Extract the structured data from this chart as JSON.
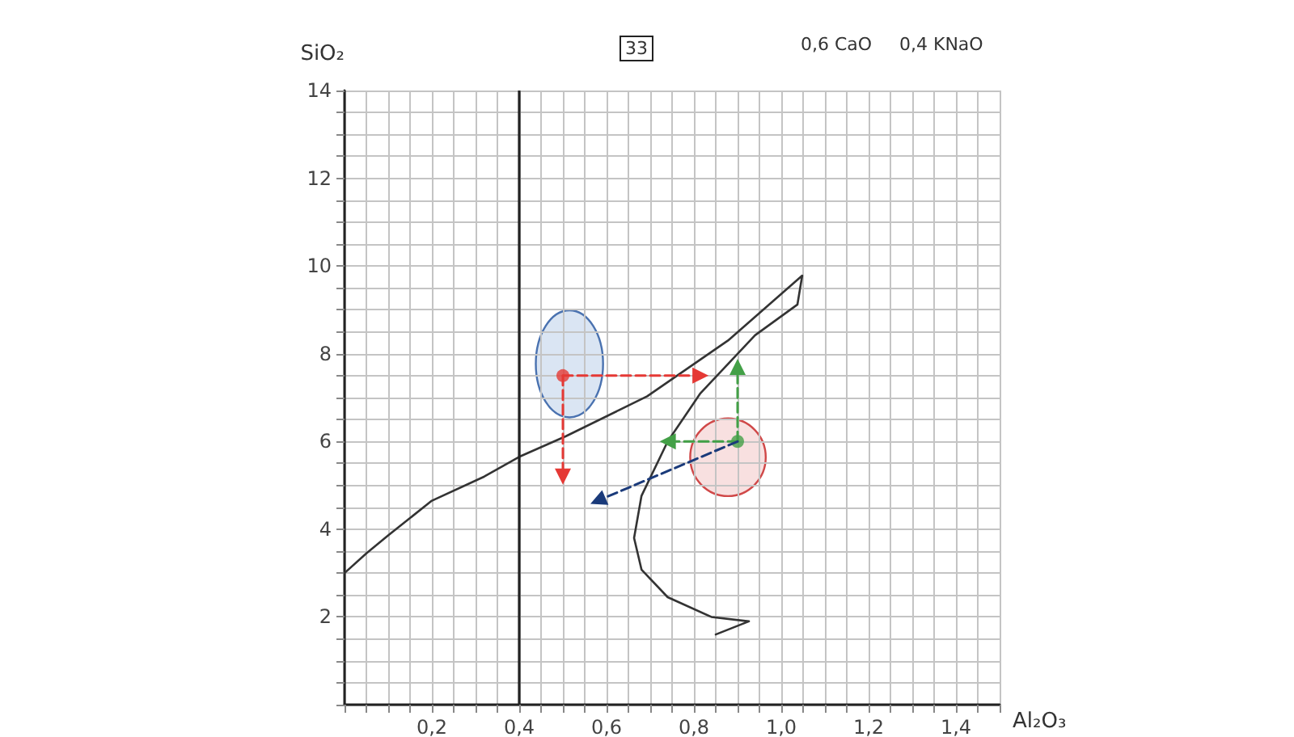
{
  "chart_data": {
    "type": "line",
    "xlabel": "Al₂O₃",
    "ylabel": "SiO₂",
    "annotations": [
      "33",
      "0,6 CaO",
      "0,4 KNaO"
    ],
    "xlim": [
      0,
      1.5
    ],
    "ylim": [
      0,
      14
    ],
    "xticks": [
      {
        "value": 0,
        "label": null
      },
      {
        "value": 0.05,
        "label": null
      },
      {
        "value": 0.1,
        "label": null
      },
      {
        "value": 0.15,
        "label": null
      },
      {
        "value": 0.2,
        "label": "0,2"
      },
      {
        "value": 0.25,
        "label": null
      },
      {
        "value": 0.3,
        "label": null
      },
      {
        "value": 0.35,
        "label": null
      },
      {
        "value": 0.4,
        "label": "0,4"
      },
      {
        "value": 0.45,
        "label": null
      },
      {
        "value": 0.5,
        "label": null
      },
      {
        "value": 0.55,
        "label": null
      },
      {
        "value": 0.6,
        "label": "0,6"
      },
      {
        "value": 0.65,
        "label": null
      },
      {
        "value": 0.7,
        "label": null
      },
      {
        "value": 0.75,
        "label": null
      },
      {
        "value": 0.8,
        "label": "0,8"
      },
      {
        "value": 0.85,
        "label": null
      },
      {
        "value": 0.9,
        "label": null
      },
      {
        "value": 0.95,
        "label": null
      },
      {
        "value": 1.0,
        "label": "1,0"
      },
      {
        "value": 1.05,
        "label": null
      },
      {
        "value": 1.1,
        "label": null
      },
      {
        "value": 1.15,
        "label": null
      },
      {
        "value": 1.2,
        "label": "1,2"
      },
      {
        "value": 1.25,
        "label": null
      },
      {
        "value": 1.3,
        "label": null
      },
      {
        "value": 1.35,
        "label": null
      },
      {
        "value": 1.4,
        "label": "1,4"
      },
      {
        "value": 1.45,
        "label": null
      },
      {
        "value": 1.5,
        "label": null
      }
    ],
    "yticks": [
      {
        "value": 0,
        "label": null
      },
      {
        "value": 0.5,
        "label": null
      },
      {
        "value": 1,
        "label": null
      },
      {
        "value": 1.5,
        "label": null
      },
      2,
      {
        "value": 2.5,
        "label": null
      },
      {
        "value": 3,
        "label": null
      },
      {
        "value": 3.5,
        "label": null
      },
      4,
      {
        "value": 4.5,
        "label": null
      },
      {
        "value": 5,
        "label": null
      },
      {
        "value": 5.5,
        "label": null
      },
      6,
      {
        "value": 6.5,
        "label": null
      },
      {
        "value": 7,
        "label": null
      },
      {
        "value": 7.5,
        "label": null
      },
      8,
      {
        "value": 8.5,
        "label": null
      },
      {
        "value": 9,
        "label": null
      },
      {
        "value": 9.5,
        "label": null
      },
      10,
      {
        "value": 10.5,
        "label": null
      },
      {
        "value": 11,
        "label": null
      },
      {
        "value": 11.5,
        "label": null
      },
      12,
      {
        "value": 12.5,
        "label": null
      },
      {
        "value": 13,
        "label": null
      },
      {
        "value": 13.5,
        "label": null
      },
      14
    ],
    "grid": true,
    "ref_lines": [
      {
        "axis": "x",
        "value": 0.4,
        "color": "#222222"
      }
    ],
    "series": [
      {
        "color": "#333333",
        "marker": "none",
        "x": [
          0,
          0.05,
          0.1,
          0.2,
          0.32,
          0.4,
          0.507,
          0.693,
          0.878,
          1.048,
          1.037,
          0.94,
          0.815,
          0.74,
          0.68,
          0.663,
          0.68,
          0.74,
          0.84,
          0.926,
          0.85
        ],
        "values": [
          3,
          3.45,
          3.86,
          4.65,
          5.2,
          5.65,
          6.12,
          7.03,
          8.3,
          9.78,
          9.12,
          8.42,
          7.1,
          6.0,
          4.76,
          3.8,
          3.08,
          2.45,
          2.0,
          1.9,
          1.6
        ]
      },
      {
        "color": "#e53935",
        "line_style": "dashed",
        "marker": "triangle",
        "x": [
          0.5,
          0.815
        ],
        "values": [
          7.5,
          7.5
        ]
      },
      {
        "color": "#e53935",
        "line_style": "dashed",
        "marker": "triangle",
        "x": [
          0.5,
          0.5
        ],
        "values": [
          7.5,
          5.2
        ]
      },
      {
        "color": "#43a047",
        "line_style": "dashed",
        "marker": "triangle",
        "x": [
          0.9,
          0.9
        ],
        "values": [
          6.0,
          7.7
        ]
      },
      {
        "color": "#43a047",
        "line_style": "dashed",
        "marker": "triangle",
        "x": [
          0.9,
          0.74
        ],
        "values": [
          6.0,
          6.0
        ]
      },
      {
        "color": "#1a3a7a",
        "line_style": "dashed",
        "marker": "triangle",
        "x": [
          0.9,
          0.58
        ],
        "values": [
          6.0,
          4.65
        ]
      },
      {
        "type": "scatter",
        "marker": "circle",
        "colors": [
          "#e53935",
          "#43a047"
        ],
        "x": [
          0.5,
          0.9
        ],
        "values": [
          7.5,
          6.0
        ]
      }
    ]
  }
}
